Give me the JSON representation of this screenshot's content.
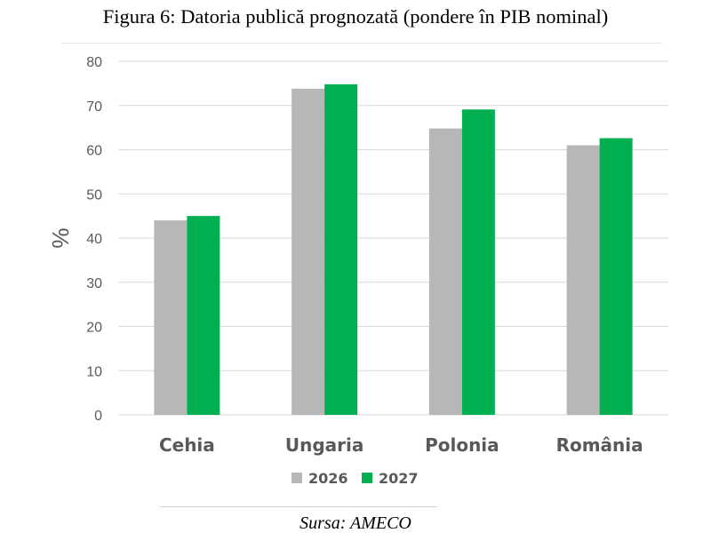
{
  "title": "Figura 6: Datoria publică prognozată (pondere în PIB nominal)",
  "source": "Sursa: AMECO",
  "colors": {
    "series_2026": "#b7b7b7",
    "series_2027": "#00b050",
    "grid": "#d9d9d9",
    "tick_text": "#595959"
  },
  "chart_data": {
    "type": "bar",
    "categories": [
      "Cehia",
      "Ungaria",
      "Polonia",
      "România"
    ],
    "series": [
      {
        "name": "2026",
        "values": [
          44,
          73.8,
          64.8,
          61
        ]
      },
      {
        "name": "2027",
        "values": [
          45,
          74.8,
          69.1,
          62.6
        ]
      }
    ],
    "ylabel": "%",
    "ylim": [
      0,
      80
    ],
    "yticks": [
      0,
      10,
      20,
      30,
      40,
      50,
      60,
      70,
      80
    ],
    "grid": true,
    "legend_position": "bottom"
  }
}
